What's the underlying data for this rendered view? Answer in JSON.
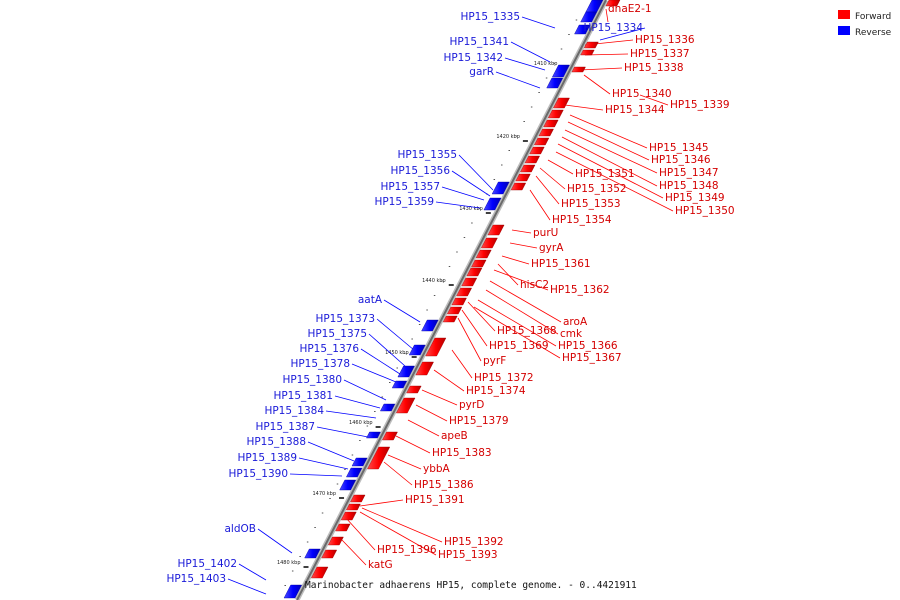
{
  "legend": {
    "forward_label": "Forward",
    "reverse_label": "Reverse",
    "forward_color": "#ff0000",
    "reverse_color": "#0000ff"
  },
  "caption": "Marinobacter adhaerens HP15, complete genome. - 0..4421911",
  "position_ticks": [
    "1410 kbp",
    "1420 kbp",
    "1430 kbp",
    "1440 kbp",
    "1450 kbp",
    "1460 kbp",
    "1470 kbp",
    "1480 kbp"
  ],
  "forward_genes": [
    "dnaE2-1",
    "HP15_1336",
    "HP15_1337",
    "HP15_1338",
    "HP15_1340",
    "HP15_1339",
    "HP15_1344",
    "HP15_1345",
    "HP15_1346",
    "HP15_1347",
    "HP15_1348",
    "HP15_1349",
    "HP15_1350",
    "HP15_1351",
    "HP15_1352",
    "HP15_1353",
    "HP15_1354",
    "purU",
    "gyrA",
    "HP15_1361",
    "hisC2",
    "HP15_1362",
    "aroA",
    "cmk",
    "HP15_1368",
    "HP15_1366",
    "HP15_1369",
    "HP15_1367",
    "pyrF",
    "HP15_1372",
    "HP15_1374",
    "pyrD",
    "HP15_1379",
    "apeB",
    "HP15_1383",
    "ybbA",
    "HP15_1386",
    "HP15_1391",
    "HP15_1392",
    "HP15_1393",
    "HP15_1396",
    "katG"
  ],
  "reverse_genes": [
    "HP15_1335",
    "HP15_1334",
    "HP15_1341",
    "HP15_1342",
    "garR",
    "HP15_1355",
    "HP15_1356",
    "HP15_1357",
    "HP15_1359",
    "aatA",
    "HP15_1373",
    "HP15_1375",
    "HP15_1376",
    "HP15_1378",
    "HP15_1380",
    "HP15_1381",
    "HP15_1384",
    "HP15_1387",
    "HP15_1388",
    "HP15_1389",
    "HP15_1390",
    "aldOB",
    "HP15_1402",
    "HP15_1403"
  ]
}
